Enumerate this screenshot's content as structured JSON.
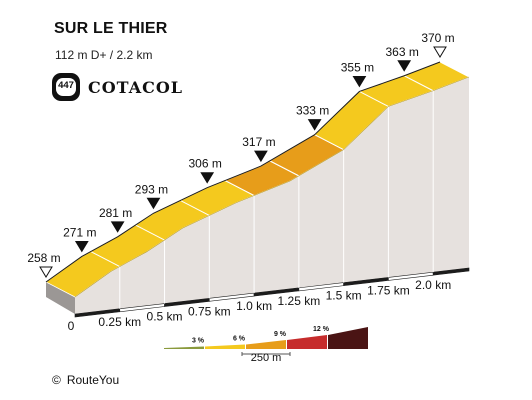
{
  "header": {
    "title": "SUR LE THIER",
    "stats": "112 m D+ / 2.2 km"
  },
  "logo": {
    "number": "447",
    "name": "COTACOL"
  },
  "footer": {
    "copyright_symbol": "©",
    "brand": "RouteYou"
  },
  "chart_data": {
    "type": "area",
    "title": "SUR LE THIER",
    "xlabel": "",
    "ylabel": "",
    "x_unit": "km",
    "y_unit": "m",
    "xlim": [
      0,
      2.2
    ],
    "x_ticks": [
      "0",
      "0.25 km",
      "0.5 km",
      "0.75 km",
      "1.0 km",
      "1.25 km",
      "1.5 km",
      "1.75 km",
      "2.0 km"
    ],
    "points": [
      {
        "x": 0,
        "y": 258,
        "label": "258 m"
      },
      {
        "x": 0.2,
        "y": 271,
        "label": "271 m"
      },
      {
        "x": 0.4,
        "y": 281,
        "label": "281 m"
      },
      {
        "x": 0.6,
        "y": 293,
        "label": "293 m"
      },
      {
        "x": 0.9,
        "y": 306,
        "label": "306 m"
      },
      {
        "x": 1.2,
        "y": 317,
        "label": "317 m"
      },
      {
        "x": 1.5,
        "y": 333,
        "label": "333 m"
      },
      {
        "x": 1.75,
        "y": 355,
        "label": "355 m"
      },
      {
        "x": 2.0,
        "y": 363,
        "label": "363 m"
      },
      {
        "x": 2.2,
        "y": 370,
        "label": "370 m"
      }
    ],
    "segments": [
      {
        "from": 0,
        "to": 1.0,
        "grade_class": "6 %"
      },
      {
        "from": 1.0,
        "to": 1.25,
        "grade_class": "9 %"
      },
      {
        "from": 1.25,
        "to": 1.5,
        "grade_class": "9 %"
      },
      {
        "from": 1.5,
        "to": 2.2,
        "grade_class": "6 %"
      }
    ],
    "legend": {
      "items": [
        {
          "label": "3 %",
          "color": "#8a9a3c"
        },
        {
          "label": "6 %",
          "color": "#f4c91e"
        },
        {
          "label": "9 %",
          "color": "#e79d1a"
        },
        {
          "label": "12 %",
          "color": "#c62c2c"
        },
        {
          "label": "",
          "color": "#4a1414"
        }
      ],
      "scale_label": "250 m"
    },
    "colors": {
      "face": "#e6e1de",
      "top_light": "#f7cc2a",
      "edge_dark": "#1c1c1c"
    },
    "legend_placement": "bottom-right"
  }
}
